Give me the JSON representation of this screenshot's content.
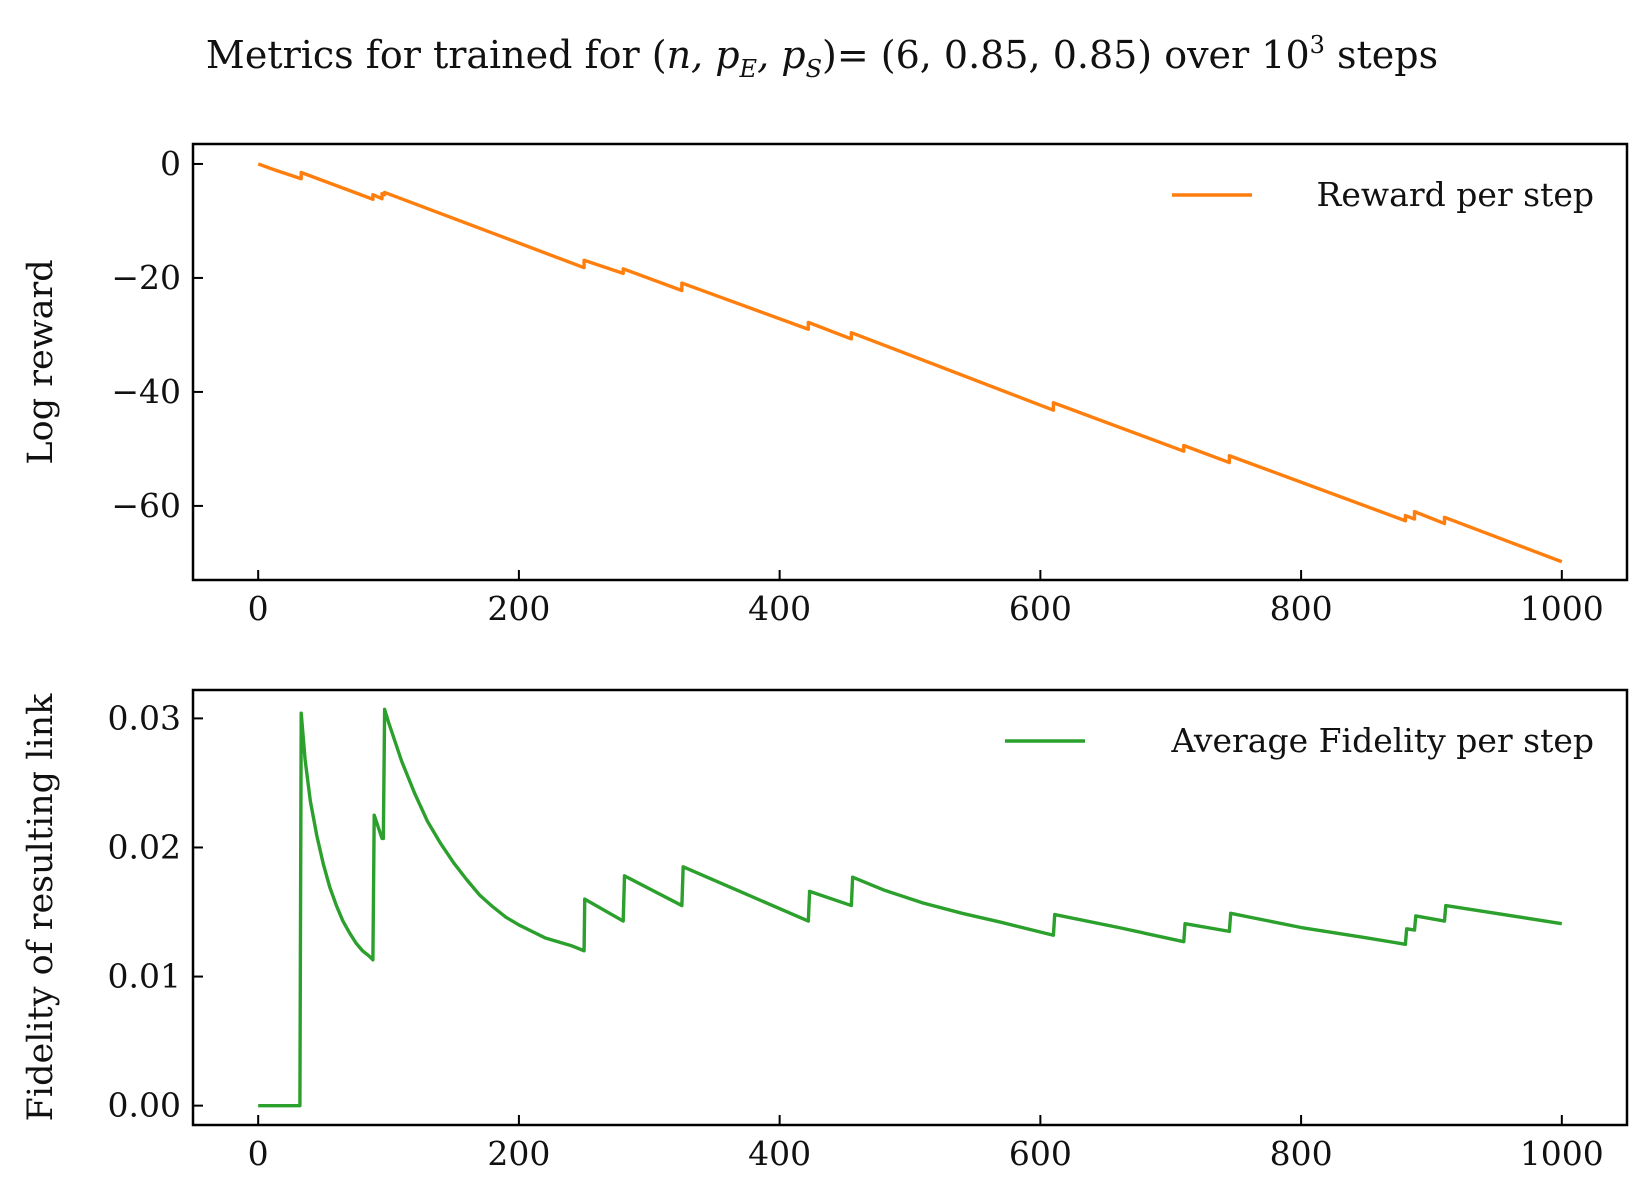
{
  "figure": {
    "title_prefix": "Metrics for trained for (",
    "title_vars": "n, p",
    "title_sub1": "E",
    "title_mid": ", p",
    "title_sub2": "S",
    "title_after": ")= (6, 0.85, 0.85) over 10",
    "title_sup": "3",
    "title_end": " steps"
  },
  "chart_data": [
    {
      "type": "line",
      "ylabel": "Log reward",
      "xlabel": "",
      "xlim": [
        -50,
        1050
      ],
      "ylim": [
        -73,
        3.5
      ],
      "xticks": [
        0,
        200,
        400,
        600,
        800,
        1000
      ],
      "xtick_labels": [
        "0",
        "200",
        "400",
        "600",
        "800",
        "1000"
      ],
      "yticks": [
        0,
        -20,
        -40,
        -60
      ],
      "ytick_labels": [
        "0",
        "−20",
        "−40",
        "−60"
      ],
      "legend_position": "top-right",
      "grid": false,
      "series": [
        {
          "name": "Reward per step",
          "color": "#ff7f0e",
          "x": [
            0,
            12,
            33,
            33,
            88,
            88,
            95,
            95,
            97,
            97,
            250,
            250,
            280,
            280,
            325,
            325,
            422,
            422,
            455,
            455,
            610,
            610,
            710,
            710,
            745,
            745,
            880,
            880,
            887,
            887,
            910,
            910,
            1000
          ],
          "y": [
            0,
            -1.0,
            -2.6,
            -1.5,
            -6.2,
            -5.4,
            -6.1,
            -5.2,
            -5.4,
            -5.0,
            -18.2,
            -16.9,
            -19.2,
            -18.4,
            -22.2,
            -20.9,
            -29.0,
            -27.8,
            -30.7,
            -29.6,
            -43.2,
            -41.9,
            -50.4,
            -49.4,
            -52.4,
            -51.2,
            -62.6,
            -61.7,
            -62.3,
            -61.0,
            -63.1,
            -62.0,
            -69.8
          ]
        }
      ]
    },
    {
      "type": "line",
      "ylabel": "Fidelity of resulting link",
      "xlabel": "",
      "xlim": [
        -50,
        1050
      ],
      "ylim": [
        -0.0015,
        0.0322
      ],
      "xticks": [
        0,
        200,
        400,
        600,
        800,
        1000
      ],
      "xtick_labels": [
        "0",
        "200",
        "400",
        "600",
        "800",
        "1000"
      ],
      "yticks": [
        0.0,
        0.01,
        0.02,
        0.03
      ],
      "ytick_labels": [
        "0.00",
        "0.01",
        "0.02",
        "0.03"
      ],
      "legend_position": "top-right",
      "grid": false,
      "series": [
        {
          "name": "Average Fidelity per step",
          "color": "#2ca02c",
          "x": [
            0,
            32,
            33,
            36,
            40,
            45,
            50,
            55,
            60,
            65,
            70,
            75,
            80,
            85,
            88,
            89,
            95,
            96,
            97,
            100,
            110,
            120,
            130,
            140,
            150,
            160,
            170,
            180,
            190,
            200,
            210,
            220,
            230,
            240,
            250,
            250.5,
            280,
            281,
            325,
            326,
            422,
            423,
            455,
            456,
            480,
            510,
            540,
            570,
            610,
            611,
            660,
            710,
            711,
            745,
            746,
            800,
            850,
            880,
            881,
            887,
            888,
            910,
            911,
            1000
          ],
          "y": [
            0,
            0,
            0.0304,
            0.0268,
            0.0236,
            0.0209,
            0.0187,
            0.0169,
            0.0155,
            0.0143,
            0.0134,
            0.0126,
            0.012,
            0.0116,
            0.0113,
            0.0225,
            0.0207,
            0.0207,
            0.0307,
            0.0297,
            0.0267,
            0.0242,
            0.022,
            0.0203,
            0.0188,
            0.0175,
            0.0163,
            0.0154,
            0.0146,
            0.014,
            0.0135,
            0.013,
            0.0127,
            0.0124,
            0.012,
            0.016,
            0.0143,
            0.0178,
            0.0155,
            0.0185,
            0.0143,
            0.0166,
            0.0155,
            0.0177,
            0.0167,
            0.0157,
            0.0149,
            0.0142,
            0.0132,
            0.0148,
            0.0138,
            0.0127,
            0.0141,
            0.0135,
            0.0149,
            0.0138,
            0.013,
            0.0125,
            0.0137,
            0.0136,
            0.0147,
            0.0143,
            0.0155,
            0.0141
          ]
        }
      ]
    }
  ]
}
